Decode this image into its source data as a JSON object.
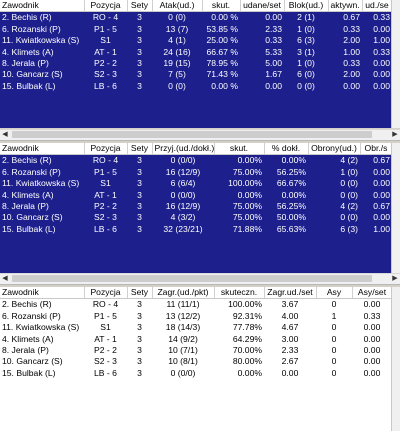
{
  "panel1": {
    "columns": [
      "Zawodnik",
      "Pozycja",
      "Sety",
      "Atak(ud.)",
      "skut.",
      "udane/set",
      "Blok(ud.)",
      "aktywn.",
      "ud./se"
    ],
    "rows": [
      [
        "2. Bechis (R)",
        "RO - 4",
        "3",
        "0 (0)",
        "0.00 %",
        "0.00",
        "2 (1)",
        "0.67",
        "0.33"
      ],
      [
        "6. Rozanski (P)",
        "P1 - 5",
        "3",
        "13 (7)",
        "53.85 %",
        "2.33",
        "1 (0)",
        "0.33",
        "0.00"
      ],
      [
        "11. Kwiatkowska (S)",
        "S1",
        "3",
        "4 (1)",
        "25.00 %",
        "0.33",
        "6 (3)",
        "2.00",
        "1.00"
      ],
      [
        "4. Klimets (A)",
        "AT - 1",
        "3",
        "24 (16)",
        "66.67 %",
        "5.33",
        "3 (1)",
        "1.00",
        "0.33"
      ],
      [
        "8. Jerala (P)",
        "P2 - 2",
        "3",
        "19 (15)",
        "78.95 %",
        "5.00",
        "1 (0)",
        "0.33",
        "0.00"
      ],
      [
        "10. Gancarz (S)",
        "S2 - 3",
        "3",
        "7 (5)",
        "71.43 %",
        "1.67",
        "6 (0)",
        "2.00",
        "0.00"
      ],
      [
        "15. Bulbak (L)",
        "LB - 6",
        "3",
        "0 (0)",
        "0.00 %",
        "0.00",
        "0 (0)",
        "0.00",
        "0.00"
      ]
    ]
  },
  "panel2": {
    "columns": [
      "Zawodnik",
      "Pozycja",
      "Sety",
      "Przyj.(ud./dokł.)",
      "skut.",
      "% dokł.",
      "Obrony(ud.)",
      "Obr./s"
    ],
    "rows": [
      [
        "2. Bechis (R)",
        "RO - 4",
        "3",
        "0 (0/0)",
        "0.00%",
        "0.00%",
        "4 (2)",
        "0.67"
      ],
      [
        "6. Rozanski (P)",
        "P1 - 5",
        "3",
        "16 (12/9)",
        "75.00%",
        "56.25%",
        "1 (0)",
        "0.00"
      ],
      [
        "11. Kwiatkowska (S)",
        "S1",
        "3",
        "6 (6/4)",
        "100.00%",
        "66.67%",
        "0 (0)",
        "0.00"
      ],
      [
        "4. Klimets (A)",
        "AT - 1",
        "3",
        "0 (0/0)",
        "0.00%",
        "0.00%",
        "0 (0)",
        "0.00"
      ],
      [
        "8. Jerala (P)",
        "P2 - 2",
        "3",
        "16 (12/9)",
        "75.00%",
        "56.25%",
        "4 (2)",
        "0.67"
      ],
      [
        "10. Gancarz (S)",
        "S2 - 3",
        "3",
        "4 (3/2)",
        "75.00%",
        "50.00%",
        "0 (0)",
        "0.00"
      ],
      [
        "15. Bulbak (L)",
        "LB - 6",
        "3",
        "32 (23/21)",
        "71.88%",
        "65.63%",
        "6 (3)",
        "1.00"
      ]
    ]
  },
  "panel3": {
    "columns": [
      "Zawodnik",
      "Pozycja",
      "Sety",
      "Zagr.(ud./pkt)",
      "skuteczn.",
      "Zagr.ud./set",
      "Asy",
      "Asy/set"
    ],
    "rows": [
      [
        "2. Bechis (R)",
        "RO - 4",
        "3",
        "11 (11/1)",
        "100.00%",
        "3.67",
        "0",
        "0.00"
      ],
      [
        "6. Rozanski (P)",
        "P1 - 5",
        "3",
        "13 (12/2)",
        "92.31%",
        "4.00",
        "1",
        "0.33"
      ],
      [
        "11. Kwiatkowska (S)",
        "S1",
        "3",
        "18 (14/3)",
        "77.78%",
        "4.67",
        "0",
        "0.00"
      ],
      [
        "4. Klimets (A)",
        "AT - 1",
        "3",
        "14 (9/2)",
        "64.29%",
        "3.00",
        "0",
        "0.00"
      ],
      [
        "8. Jerala (P)",
        "P2 - 2",
        "3",
        "10 (7/1)",
        "70.00%",
        "2.33",
        "0",
        "0.00"
      ],
      [
        "10. Gancarz (S)",
        "S2 - 3",
        "3",
        "10 (8/1)",
        "80.00%",
        "2.67",
        "0",
        "0.00"
      ],
      [
        "15. Bulbak (L)",
        "LB - 6",
        "3",
        "0 (0/0)",
        "0.00%",
        "0.00",
        "0",
        "0.00"
      ]
    ]
  },
  "scroll": {
    "left_arrow": "◀",
    "right_arrow": "▶"
  }
}
